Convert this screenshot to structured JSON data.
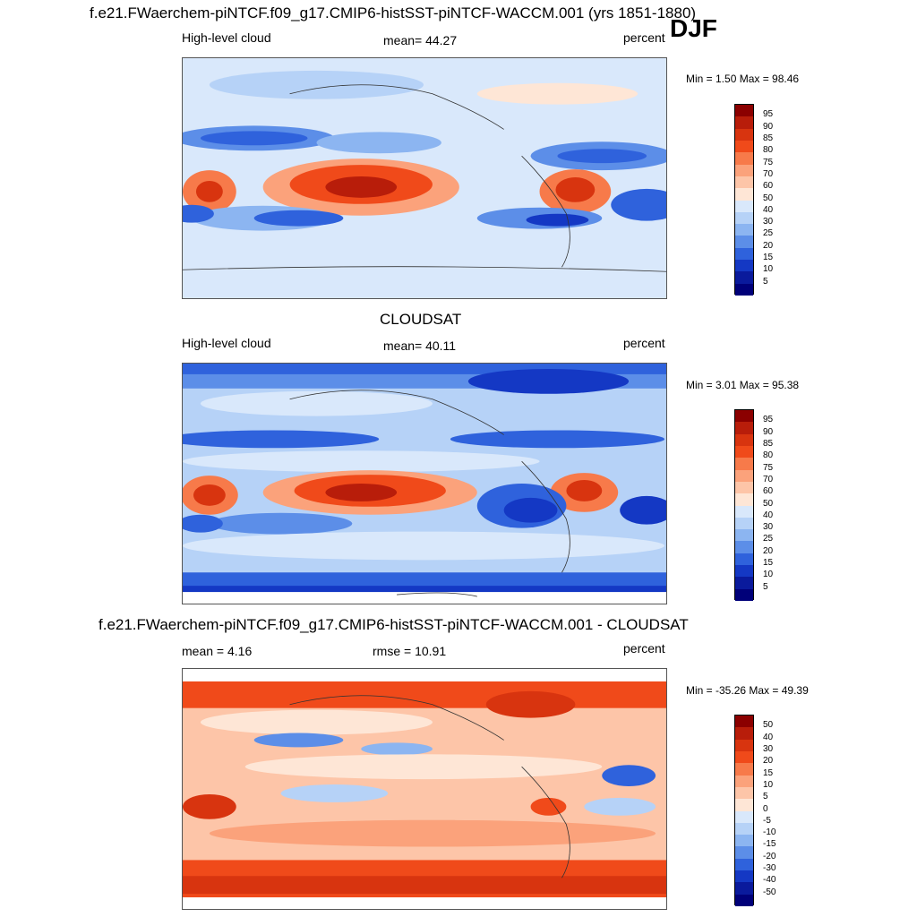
{
  "header": {
    "title": "f.e21.FWaerchem-piNTCF.f09_g17.CMIP6-histSST-piNTCF-WACCM.001 (yrs 1851-1880)",
    "season": "DJF"
  },
  "panels": [
    {
      "title": "",
      "variable": "High-level cloud",
      "stat": "mean=  44.27",
      "units": "percent",
      "minmax": "Min =   1.50 Max =  98.46",
      "colorbar_labels": [
        "95",
        "90",
        "85",
        "80",
        "75",
        "70",
        "60",
        "50",
        "40",
        "30",
        "25",
        "20",
        "15",
        "10",
        "5"
      ],
      "colors": [
        "#8b0000",
        "#b81d0a",
        "#d8340f",
        "#f04a1a",
        "#f77a4a",
        "#fba27b",
        "#fdc5a8",
        "#fee6d6",
        "#d9e8fb",
        "#b6d2f7",
        "#8cb5f1",
        "#5c8ee8",
        "#2f62dc",
        "#1438c4",
        "#0a1a9c",
        "#000079"
      ]
    },
    {
      "title": "CLOUDSAT",
      "variable": "High-level cloud",
      "stat": "mean=  40.11",
      "units": "percent",
      "minmax": "Min =   3.01 Max =  95.38",
      "colorbar_labels": [
        "95",
        "90",
        "85",
        "80",
        "75",
        "70",
        "60",
        "50",
        "40",
        "30",
        "25",
        "20",
        "15",
        "10",
        "5"
      ],
      "colors": [
        "#8b0000",
        "#b81d0a",
        "#d8340f",
        "#f04a1a",
        "#f77a4a",
        "#fba27b",
        "#fdc5a8",
        "#fee6d6",
        "#d9e8fb",
        "#b6d2f7",
        "#8cb5f1",
        "#5c8ee8",
        "#2f62dc",
        "#1438c4",
        "#0a1a9c",
        "#000079"
      ]
    },
    {
      "title": "f.e21.FWaerchem-piNTCF.f09_g17.CMIP6-histSST-piNTCF-WACCM.001 - CLOUDSAT",
      "variable": "mean =   4.16",
      "stat": "rmse =  10.91",
      "units": "percent",
      "minmax": "Min = -35.26 Max =  49.39",
      "colorbar_labels": [
        "50",
        "40",
        "30",
        "20",
        "15",
        "10",
        "5",
        "0",
        "-5",
        "-10",
        "-15",
        "-20",
        "-30",
        "-40",
        "-50"
      ],
      "colors": [
        "#8b0000",
        "#b81d0a",
        "#d8340f",
        "#f04a1a",
        "#f77a4a",
        "#fba27b",
        "#fdc5a8",
        "#fee6d6",
        "#d9e8fb",
        "#b6d2f7",
        "#8cb5f1",
        "#5c8ee8",
        "#2f62dc",
        "#1438c4",
        "#0a1a9c",
        "#000079"
      ]
    }
  ]
}
